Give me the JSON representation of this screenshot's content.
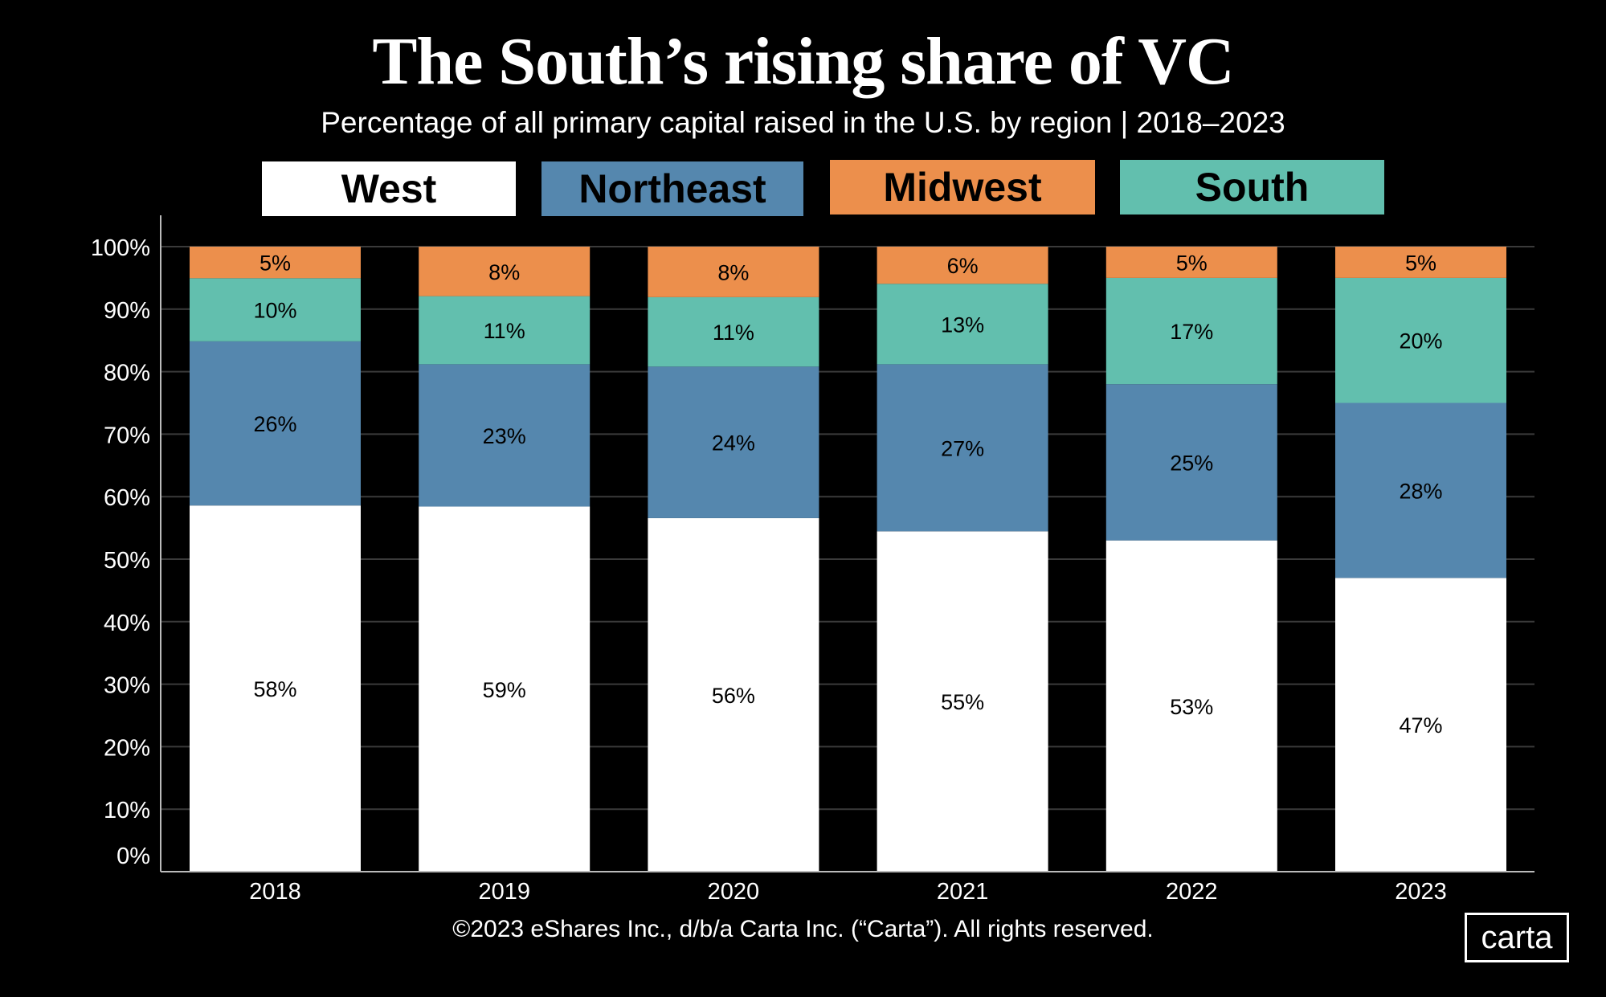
{
  "chart_data": {
    "type": "stacked-bar",
    "title": "The South’s rising share of VC",
    "subtitle": "Percentage of all primary capital raised in the U.S. by region | 2018–2023",
    "categories": [
      "2018",
      "2019",
      "2020",
      "2021",
      "2022",
      "2023"
    ],
    "series": [
      {
        "name": "West",
        "color": "#ffffff",
        "values": [
          58,
          59,
          56,
          55,
          53,
          47
        ]
      },
      {
        "name": "Northeast",
        "color": "#5587ae",
        "values": [
          26,
          23,
          24,
          27,
          25,
          28
        ]
      },
      {
        "name": "South",
        "color": "#62bfae",
        "values": [
          10,
          11,
          11,
          13,
          17,
          20
        ]
      },
      {
        "name": "Midwest",
        "color": "#ec8f4c",
        "values": [
          5,
          8,
          8,
          6,
          5,
          5
        ]
      }
    ],
    "legend_order": [
      "West",
      "Northeast",
      "Midwest",
      "South"
    ],
    "ylim": [
      0,
      100
    ],
    "yticks": [
      "0%",
      "10%",
      "20%",
      "30%",
      "40%",
      "50%",
      "60%",
      "70%",
      "80%",
      "90%",
      "100%"
    ],
    "grid": true,
    "legend_placement": "top"
  },
  "footer": "©2023 eShares Inc., d/b/a Carta Inc. (“Carta”). All rights reserved.",
  "logo": "carta"
}
